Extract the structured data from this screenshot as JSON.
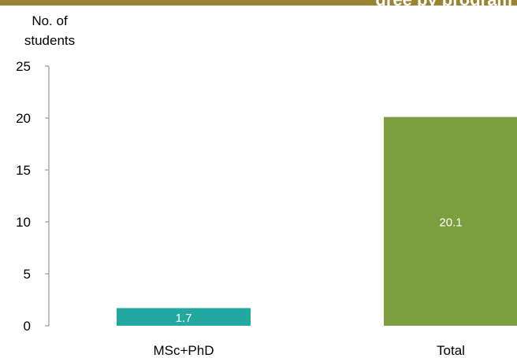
{
  "header": {
    "strip_text": "gree by program"
  },
  "chart_data": {
    "type": "bar",
    "ylabel": "No. of students",
    "categories": [
      "MSc+PhD",
      "Total"
    ],
    "values": [
      1.7,
      20.1
    ],
    "data_labels": [
      "1.7",
      "20.1"
    ],
    "colors": [
      "#22a8a0",
      "#7d9e3e"
    ],
    "ylim": [
      0,
      25
    ],
    "yticks": [
      0,
      5,
      10,
      15,
      20,
      25
    ],
    "grid": false,
    "legend": "none"
  }
}
